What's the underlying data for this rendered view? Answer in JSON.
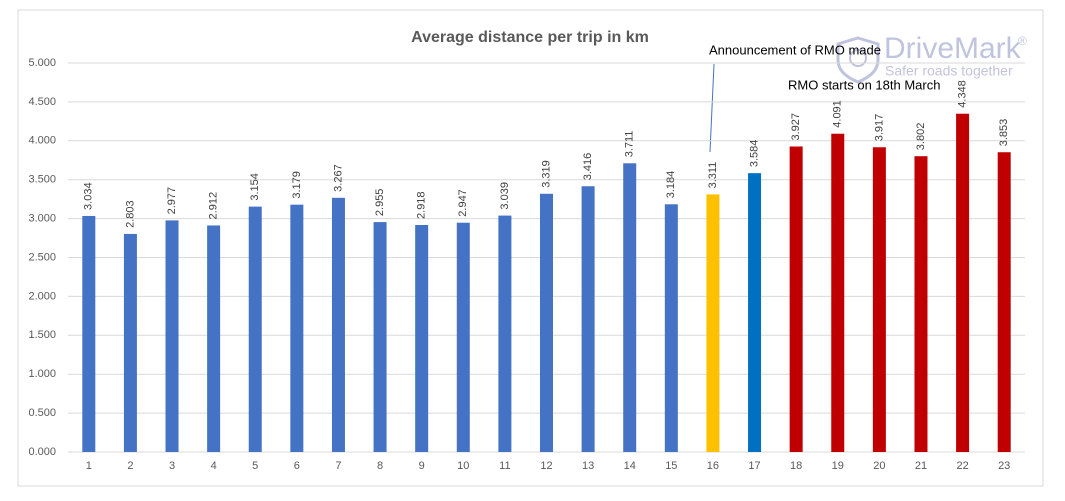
{
  "chart_data": {
    "type": "bar",
    "title": "Average distance per trip in km",
    "categories": [
      1,
      2,
      3,
      4,
      5,
      6,
      7,
      8,
      9,
      10,
      11,
      12,
      13,
      14,
      15,
      16,
      17,
      18,
      19,
      20,
      21,
      22,
      23
    ],
    "values": [
      3.034,
      2.803,
      2.977,
      2.912,
      3.154,
      3.179,
      3.267,
      2.955,
      2.918,
      2.947,
      3.039,
      3.319,
      3.416,
      3.711,
      3.184,
      3.311,
      3.584,
      3.927,
      4.091,
      3.917,
      3.802,
      4.348,
      3.853
    ],
    "colors": [
      "#4472c4",
      "#4472c4",
      "#4472c4",
      "#4472c4",
      "#4472c4",
      "#4472c4",
      "#4472c4",
      "#4472c4",
      "#4472c4",
      "#4472c4",
      "#4472c4",
      "#4472c4",
      "#4472c4",
      "#4472c4",
      "#4472c4",
      "#ffc000",
      "#0070c0",
      "#c00000",
      "#c00000",
      "#c00000",
      "#c00000",
      "#c00000",
      "#c00000"
    ],
    "ylim": [
      0,
      5
    ],
    "yticks": [
      {
        "value": 0,
        "label": "0.000"
      },
      {
        "value": 0.5,
        "label": "0.500"
      },
      {
        "value": 1,
        "label": "1.000"
      },
      {
        "value": 1.5,
        "label": "1.500"
      },
      {
        "value": 2,
        "label": "2.000"
      },
      {
        "value": 2.5,
        "label": "2.500"
      },
      {
        "value": 3,
        "label": "3.000"
      },
      {
        "value": 3.5,
        "label": "3.500"
      },
      {
        "value": 4,
        "label": "4.000"
      },
      {
        "value": 4.5,
        "label": "4.500"
      },
      {
        "value": 5,
        "label": "5.000"
      }
    ],
    "grid": true,
    "annotations": [
      "Announcement of RMO made",
      "RMO starts on 18th March"
    ]
  },
  "logo": {
    "name": "DriveMark",
    "mark": "®",
    "tagline": "Safer roads together"
  }
}
